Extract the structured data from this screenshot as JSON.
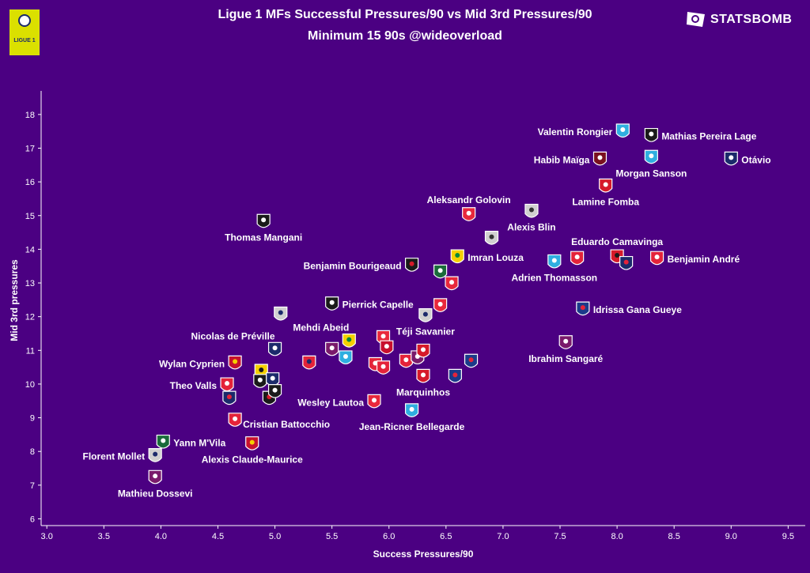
{
  "title": "Ligue 1 MFs Successful Pressures/90 vs Mid 3rd Pressures/90",
  "subtitle": "Minimum 15 90s @wideoverload",
  "league_logo_text": "LIGUE 1",
  "brand": "STATSBOMB",
  "colors": {
    "background": "#4b0082",
    "text": "#ffffff",
    "league_logo": "#dbe000"
  },
  "chart_data": {
    "type": "scatter",
    "xlabel": "Success Pressures/90",
    "ylabel": "Mid 3rd pressures",
    "xlim": [
      2.95,
      9.65
    ],
    "ylim": [
      5.8,
      18.7
    ],
    "xticks": [
      3.0,
      3.5,
      4.0,
      4.5,
      5.0,
      5.5,
      6.0,
      6.5,
      7.0,
      7.5,
      8.0,
      8.5,
      9.0,
      9.5
    ],
    "yticks": [
      6,
      7,
      8,
      9,
      10,
      11,
      12,
      13,
      14,
      15,
      16,
      17,
      18
    ],
    "xtick_labels": [
      "3.0",
      "3.5",
      "4.0",
      "4.5",
      "5.0",
      "5.5",
      "6.0",
      "6.5",
      "7.0",
      "7.5",
      "8.0",
      "8.5",
      "9.0",
      "9.5"
    ],
    "ytick_labels": [
      "6",
      "7",
      "8",
      "9",
      "10",
      "11",
      "12",
      "13",
      "14",
      "15",
      "16",
      "17",
      "18"
    ],
    "points": [
      {
        "x": 8.05,
        "y": 17.48,
        "club_color": "#2faee0",
        "accent": "#ffffff",
        "label": "Valentin Rongier",
        "lpos": "left"
      },
      {
        "x": 8.3,
        "y": 17.35,
        "club_color": "#1a1a1a",
        "accent": "#ffffff",
        "label": "Mathias Pereira Lage",
        "lpos": "right"
      },
      {
        "x": 7.85,
        "y": 16.65,
        "club_color": "#7a1020",
        "accent": "#ffffff",
        "label": "Habib Maïga",
        "lpos": "left"
      },
      {
        "x": 8.3,
        "y": 16.7,
        "club_color": "#2faee0",
        "accent": "#ffffff",
        "label": "Morgan Sanson",
        "lpos": "below"
      },
      {
        "x": 9.0,
        "y": 16.65,
        "club_color": "#1b2a6b",
        "accent": "#ffffff",
        "label": "Otávio",
        "lpos": "right"
      },
      {
        "x": 7.9,
        "y": 15.85,
        "club_color": "#d61a2a",
        "accent": "#ffffff",
        "label": "Lamine Fomba",
        "lpos": "below"
      },
      {
        "x": 6.7,
        "y": 15.0,
        "club_color": "#e8283c",
        "accent": "#ffffff",
        "label": "Aleksandr Golovin",
        "lpos": "above"
      },
      {
        "x": 7.25,
        "y": 15.1,
        "club_color": "#d0d0d0",
        "accent": "#333333",
        "label": "Alexis Blin",
        "lpos": "below"
      },
      {
        "x": 4.9,
        "y": 14.8,
        "club_color": "#1a1a1a",
        "accent": "#ffffff",
        "label": "Thomas Mangani",
        "lpos": "below"
      },
      {
        "x": 6.9,
        "y": 14.3,
        "club_color": "#d0d0d0",
        "accent": "#333333",
        "label": "",
        "lpos": "none"
      },
      {
        "x": 6.6,
        "y": 13.75,
        "club_color": "#f5d000",
        "accent": "#0a8a3a",
        "label": "Imran Louza",
        "lpos": "right"
      },
      {
        "x": 7.65,
        "y": 13.7,
        "club_color": "#e4233a",
        "accent": "#ffffff",
        "label": "",
        "lpos": "none"
      },
      {
        "x": 7.45,
        "y": 13.6,
        "club_color": "#2faee0",
        "accent": "#ffffff",
        "label": "Adrien Thomasson",
        "lpos": "below"
      },
      {
        "x": 8.0,
        "y": 13.75,
        "club_color": "#d61a2a",
        "accent": "#1a1a1a",
        "label": "Eduardo Camavinga",
        "lpos": "above"
      },
      {
        "x": 8.08,
        "y": 13.55,
        "club_color": "#1b2a6b",
        "accent": "#e4233a",
        "label": "",
        "lpos": "none"
      },
      {
        "x": 8.35,
        "y": 13.7,
        "club_color": "#e4233a",
        "accent": "#ffffff",
        "label": "Benjamin André",
        "lpos": "right"
      },
      {
        "x": 6.2,
        "y": 13.5,
        "club_color": "#1a1a1a",
        "accent": "#d61a2a",
        "label": "Benjamin Bourigeaud",
        "lpos": "left"
      },
      {
        "x": 6.45,
        "y": 13.3,
        "club_color": "#1a6b3a",
        "accent": "#ffffff",
        "label": "",
        "lpos": "none"
      },
      {
        "x": 6.55,
        "y": 12.95,
        "club_color": "#e8283c",
        "accent": "#ffffff",
        "label": "",
        "lpos": "none"
      },
      {
        "x": 5.05,
        "y": 12.05,
        "club_color": "#d0d0d0",
        "accent": "#1b2a6b",
        "label": "",
        "lpos": "none"
      },
      {
        "x": 5.5,
        "y": 12.35,
        "club_color": "#1a1a1a",
        "accent": "#ffffff",
        "label": "Pierrick Capelle",
        "lpos": "right"
      },
      {
        "x": 6.45,
        "y": 12.3,
        "club_color": "#e8283c",
        "accent": "#ffffff",
        "label": "",
        "lpos": "none"
      },
      {
        "x": 6.32,
        "y": 12.0,
        "club_color": "#d0d0d0",
        "accent": "#1b2a6b",
        "label": "Téji Savanier",
        "lpos": "below"
      },
      {
        "x": 7.7,
        "y": 12.2,
        "club_color": "#1b3a8a",
        "accent": "#e4233a",
        "label": "Idrissa Gana Gueye",
        "lpos": "right"
      },
      {
        "x": 5.0,
        "y": 11.0,
        "club_color": "#1b2a6b",
        "accent": "#ffffff",
        "label": "Nicolas de Préville",
        "lpos": "above-left"
      },
      {
        "x": 5.65,
        "y": 11.25,
        "club_color": "#f5d000",
        "accent": "#0a8a3a",
        "label": "Mehdi Abeid",
        "lpos": "above-left"
      },
      {
        "x": 5.95,
        "y": 11.35,
        "club_color": "#e8283c",
        "accent": "#ffffff",
        "label": "",
        "lpos": "none"
      },
      {
        "x": 7.55,
        "y": 11.2,
        "club_color": "#7a1a6b",
        "accent": "#ffffff",
        "label": "Ibrahim Sangaré",
        "lpos": "below"
      },
      {
        "x": 5.3,
        "y": 10.6,
        "club_color": "#e4233a",
        "accent": "#1b2a6b",
        "label": "",
        "lpos": "none"
      },
      {
        "x": 5.5,
        "y": 11.0,
        "club_color": "#7a1a6b",
        "accent": "#ffffff",
        "label": "",
        "lpos": "none"
      },
      {
        "x": 5.62,
        "y": 10.75,
        "club_color": "#2faee0",
        "accent": "#ffffff",
        "label": "",
        "lpos": "none"
      },
      {
        "x": 5.88,
        "y": 10.55,
        "club_color": "#e4233a",
        "accent": "#ffffff",
        "label": "",
        "lpos": "none"
      },
      {
        "x": 5.95,
        "y": 10.45,
        "club_color": "#e4233a",
        "accent": "#ffffff",
        "label": "",
        "lpos": "none"
      },
      {
        "x": 5.98,
        "y": 11.05,
        "club_color": "#c8102e",
        "accent": "#ffffff",
        "label": "",
        "lpos": "none"
      },
      {
        "x": 6.15,
        "y": 10.65,
        "club_color": "#e4233a",
        "accent": "#ffffff",
        "label": "",
        "lpos": "none"
      },
      {
        "x": 6.25,
        "y": 10.75,
        "club_color": "#7a1a6b",
        "accent": "#ffffff",
        "label": "",
        "lpos": "none"
      },
      {
        "x": 6.3,
        "y": 10.95,
        "club_color": "#d61a2a",
        "accent": "#ffffff",
        "label": "",
        "lpos": "none"
      },
      {
        "x": 6.72,
        "y": 10.65,
        "club_color": "#1b3a8a",
        "accent": "#e4233a",
        "label": "",
        "lpos": "none"
      },
      {
        "x": 6.3,
        "y": 10.2,
        "club_color": "#d61a2a",
        "accent": "#ffffff",
        "label": "Marquinhos",
        "lpos": "below"
      },
      {
        "x": 6.58,
        "y": 10.2,
        "club_color": "#1b3a8a",
        "accent": "#e4233a",
        "label": "",
        "lpos": "none"
      },
      {
        "x": 4.65,
        "y": 10.6,
        "club_color": "#c8102e",
        "accent": "#f5d000",
        "label": "Wylan Cyprien",
        "lpos": "left"
      },
      {
        "x": 4.88,
        "y": 10.35,
        "club_color": "#f5d000",
        "accent": "#1a1a1a",
        "label": "",
        "lpos": "none"
      },
      {
        "x": 4.87,
        "y": 10.05,
        "club_color": "#1a1a1a",
        "accent": "#ffffff",
        "label": "",
        "lpos": "none"
      },
      {
        "x": 4.98,
        "y": 10.1,
        "club_color": "#1b2a6b",
        "accent": "#ffffff",
        "label": "",
        "lpos": "none"
      },
      {
        "x": 4.58,
        "y": 9.95,
        "club_color": "#e4233a",
        "accent": "#ffffff",
        "label": "Theo Valls",
        "lpos": "left"
      },
      {
        "x": 4.6,
        "y": 9.55,
        "club_color": "#1b2a6b",
        "accent": "#e4233a",
        "label": "",
        "lpos": "none"
      },
      {
        "x": 4.95,
        "y": 9.55,
        "club_color": "#1a1a1a",
        "accent": "#d61a2a",
        "label": "",
        "lpos": "none"
      },
      {
        "x": 5.0,
        "y": 9.75,
        "club_color": "#1a1a1a",
        "accent": "#ffffff",
        "label": "",
        "lpos": "none"
      },
      {
        "x": 4.65,
        "y": 8.9,
        "club_color": "#e4233a",
        "accent": "#ffffff",
        "label": "Cristian Battocchio",
        "lpos": "right-below"
      },
      {
        "x": 5.87,
        "y": 9.45,
        "club_color": "#e8283c",
        "accent": "#ffffff",
        "label": "Wesley Lautoa",
        "lpos": "left"
      },
      {
        "x": 6.2,
        "y": 9.18,
        "club_color": "#2faee0",
        "accent": "#ffffff",
        "label": "Jean-Ricner Bellegarde",
        "lpos": "below"
      },
      {
        "x": 4.02,
        "y": 8.25,
        "club_color": "#1a6b3a",
        "accent": "#ffffff",
        "label": "Yann M'Vila",
        "lpos": "right"
      },
      {
        "x": 4.8,
        "y": 8.2,
        "club_color": "#c8102e",
        "accent": "#f5d000",
        "label": "Alexis Claude-Maurice",
        "lpos": "below"
      },
      {
        "x": 3.95,
        "y": 7.85,
        "club_color": "#d0d0d0",
        "accent": "#1b2a6b",
        "label": "Florent Mollet",
        "lpos": "left"
      },
      {
        "x": 3.95,
        "y": 7.2,
        "club_color": "#7a1a6b",
        "accent": "#ffffff",
        "label": "Mathieu Dossevi",
        "lpos": "below"
      }
    ]
  }
}
